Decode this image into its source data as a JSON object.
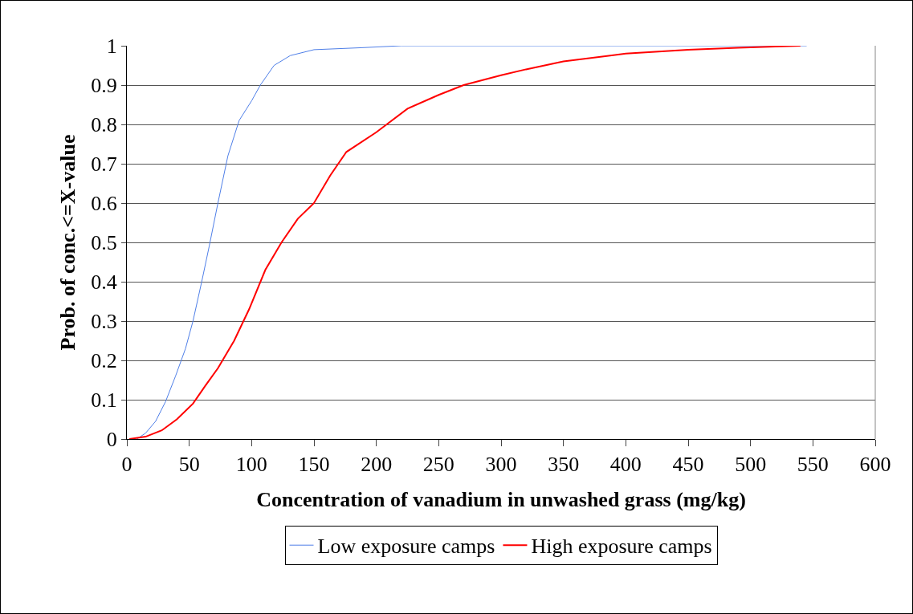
{
  "chart_data": {
    "type": "line",
    "xlabel": "Concentration of vanadium in unwashed grass (mg/kg)",
    "ylabel": "Prob. of conc.<=X-value",
    "xlim": [
      0,
      600
    ],
    "xticks": [
      0,
      50,
      100,
      150,
      200,
      250,
      300,
      350,
      400,
      450,
      500,
      550,
      600
    ],
    "ylim": [
      0,
      1
    ],
    "yticks": [
      0,
      0.1,
      0.2,
      0.3,
      0.4,
      0.5,
      0.6,
      0.7,
      0.8,
      0.9,
      1
    ],
    "grid": "y",
    "legend": "bottom",
    "marker": "none",
    "line_style": "solid",
    "series": [
      {
        "name": "Low exposure camps",
        "color": "#4f7fe8",
        "x": [
          8,
          15,
          23,
          31,
          39,
          47,
          53,
          60,
          66,
          73,
          81,
          90,
          100,
          107,
          118,
          131,
          150,
          188,
          220,
          545
        ],
        "values": [
          0,
          0.015,
          0.045,
          0.095,
          0.16,
          0.23,
          0.3,
          0.4,
          0.49,
          0.6,
          0.72,
          0.81,
          0.86,
          0.9,
          0.95,
          0.975,
          0.99,
          0.995,
          1,
          1
        ]
      },
      {
        "name": "High exposure camps",
        "color": "#ff0000",
        "x": [
          2,
          15,
          28,
          40,
          53,
          63,
          73,
          86,
          98,
          111,
          124,
          137,
          150,
          163,
          176,
          200,
          225,
          250,
          270,
          300,
          320,
          350,
          400,
          450,
          490,
          540
        ],
        "values": [
          0,
          0.006,
          0.022,
          0.05,
          0.09,
          0.136,
          0.18,
          0.25,
          0.33,
          0.43,
          0.5,
          0.56,
          0.6,
          0.67,
          0.73,
          0.78,
          0.84,
          0.875,
          0.9,
          0.925,
          0.94,
          0.96,
          0.98,
          0.99,
          0.995,
          1
        ]
      }
    ]
  }
}
